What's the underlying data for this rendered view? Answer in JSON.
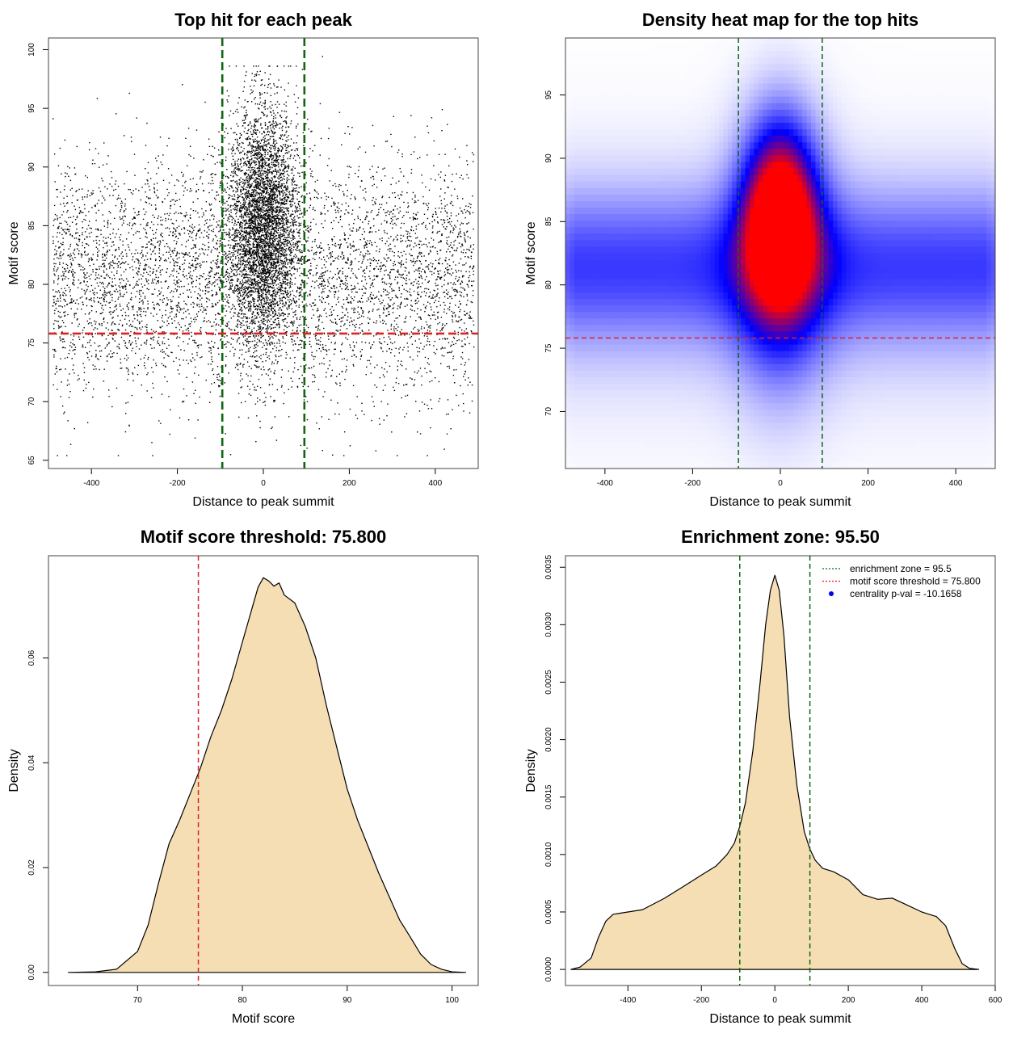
{
  "chart_data": [
    {
      "type": "scatter",
      "title": "Top hit for each peak",
      "xlabel": "Distance to peak summit",
      "ylabel": "Motif score",
      "xlim": [
        -500,
        500
      ],
      "ylim": [
        64.3,
        101
      ],
      "xticks": [
        -400,
        -200,
        0,
        200,
        400
      ],
      "yticks": [
        65,
        70,
        75,
        80,
        85,
        90,
        95,
        100
      ],
      "hlines": [
        {
          "y": 75.8,
          "color": "#dd2222",
          "style": "dashed"
        }
      ],
      "vlines": [
        {
          "x": -95.5,
          "color": "#116611",
          "style": "dashed"
        },
        {
          "x": 95.5,
          "color": "#116611",
          "style": "dashed"
        }
      ],
      "points_description": {
        "n_points": 10000,
        "background": {
          "x_range": [
            -490,
            490
          ],
          "y_mean": 80.5,
          "y_sd": 5
        },
        "central_cluster": {
          "x_mean": 0,
          "x_sd": 40,
          "y_mean": 85,
          "y_sd": 5
        }
      },
      "grid": false
    },
    {
      "type": "heatmap",
      "title": "Density heat map for the top hits",
      "xlabel": "Distance to peak summit",
      "ylabel": "Motif score",
      "xlim": [
        -490,
        490
      ],
      "ylim": [
        65.5,
        99.5
      ],
      "xticks": [
        -400,
        -200,
        0,
        200,
        400
      ],
      "yticks": [
        70,
        75,
        80,
        85,
        90,
        95
      ],
      "hlines": [
        {
          "y": 75.8,
          "color": "#dd2222",
          "style": "dashed"
        }
      ],
      "vlines": [
        {
          "x": -95.5,
          "color": "#116611",
          "style": "dashed"
        },
        {
          "x": 95.5,
          "color": "#116611",
          "style": "dashed"
        }
      ],
      "colormap": [
        "#ffffff",
        "#0000ff",
        "#ff0000"
      ],
      "peak": {
        "x": 0,
        "y": 85
      }
    },
    {
      "type": "area",
      "title": "Motif score threshold: 75.800",
      "xlabel": "Motif score",
      "ylabel": "Density",
      "xlim": [
        61.5,
        102.5
      ],
      "ylim": [
        -0.0025,
        0.0795
      ],
      "xticks": [
        70,
        80,
        90,
        100
      ],
      "yticks": [
        0.0,
        0.02,
        0.04,
        0.06
      ],
      "ytick_labels": [
        "0.00",
        "0.02",
        "0.04",
        "0.06"
      ],
      "fill": "#f5deb3",
      "x": [
        63.4,
        66,
        68,
        70,
        71,
        72,
        73,
        74,
        75,
        76,
        77,
        78,
        79,
        80,
        81,
        81.5,
        82,
        82.5,
        83,
        83.5,
        84,
        85,
        86,
        87,
        88,
        89,
        90,
        91,
        92,
        93,
        94,
        95,
        96,
        97,
        98,
        99,
        100,
        101.3
      ],
      "y": [
        0,
        0.0001,
        0.0006,
        0.004,
        0.009,
        0.017,
        0.0245,
        0.029,
        0.034,
        0.039,
        0.045,
        0.05,
        0.056,
        0.063,
        0.07,
        0.0735,
        0.0753,
        0.0747,
        0.0737,
        0.0743,
        0.072,
        0.0705,
        0.066,
        0.06,
        0.051,
        0.043,
        0.035,
        0.029,
        0.024,
        0.019,
        0.0145,
        0.01,
        0.0068,
        0.0035,
        0.0015,
        0.0006,
        0.0001,
        0
      ],
      "vlines": [
        {
          "x": 75.8,
          "color": "#dd2222",
          "style": "dashed"
        }
      ]
    },
    {
      "type": "area",
      "title": "Enrichment zone: 95.50",
      "xlabel": "Distance to peak summit",
      "ylabel": "Density",
      "xlim": [
        -570,
        600
      ],
      "ylim": [
        -0.00014,
        0.0036
      ],
      "xticks": [
        -400,
        -200,
        0,
        200,
        400,
        600
      ],
      "yticks": [
        0,
        0.0005,
        0.001,
        0.0015,
        0.002,
        0.0025,
        0.003,
        0.0035
      ],
      "ytick_labels": [
        "0.0000",
        "0.0005",
        "0.0010",
        "0.0015",
        "0.0020",
        "0.0025",
        "0.0030",
        "0.0035"
      ],
      "fill": "#f5deb3",
      "x": [
        -555,
        -530,
        -500,
        -480,
        -460,
        -440,
        -400,
        -360,
        -300,
        -250,
        -200,
        -160,
        -130,
        -110,
        -95,
        -80,
        -60,
        -40,
        -25,
        -12,
        0,
        12,
        25,
        40,
        60,
        80,
        95,
        110,
        130,
        160,
        200,
        240,
        280,
        320,
        360,
        400,
        440,
        465,
        490,
        510,
        530,
        555
      ],
      "y": [
        0,
        2e-05,
        0.0001,
        0.00028,
        0.00042,
        0.00048,
        0.0005,
        0.00052,
        0.00062,
        0.00072,
        0.00082,
        0.0009,
        0.001,
        0.0011,
        0.00125,
        0.00145,
        0.0019,
        0.0025,
        0.003,
        0.0033,
        0.00343,
        0.0033,
        0.0029,
        0.0022,
        0.0016,
        0.0012,
        0.00105,
        0.00095,
        0.00088,
        0.00085,
        0.00078,
        0.00065,
        0.00061,
        0.00062,
        0.00056,
        0.0005,
        0.00046,
        0.00038,
        0.00018,
        5e-05,
        1e-05,
        0
      ],
      "vlines": [
        {
          "x": -95.5,
          "color": "#116611",
          "style": "dashed"
        },
        {
          "x": 95.5,
          "color": "#116611",
          "style": "dashed"
        }
      ],
      "legend": {
        "placement": "top-right",
        "entries": [
          {
            "label": "enrichment zone = 95.5",
            "color": "#116611",
            "symbol": "dotted-line"
          },
          {
            "label": "motif score threshold = 75.800",
            "color": "#dd2222",
            "symbol": "dotted-line"
          },
          {
            "label": "centrality p-val = -10.1658",
            "color": "#0000ee",
            "symbol": "point"
          }
        ]
      }
    }
  ]
}
